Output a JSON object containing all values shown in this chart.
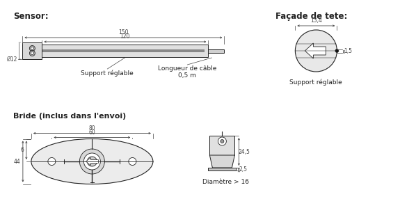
{
  "bg_color": "#ffffff",
  "line_color": "#222222",
  "dim_color": "#444444",
  "title_sensor": "Sensor:",
  "title_facade": "Façade de tete:",
  "title_bride": "Bride (inclus dans l'envoi)",
  "label_support_reg1": "Support réglable",
  "label_support_reg2": "Support réglable",
  "label_longueur": "Longueur de câble\n0,5 m",
  "label_diametre": "Diamètre > 16",
  "dim_150": "150",
  "dim_120": "120",
  "dim_12": "Ø12",
  "dim_13_4": "13,4",
  "dim_1_5": "1,5",
  "dim_80": "80",
  "dim_60": "60",
  "dim_44": "44",
  "dim_6": "6",
  "dim_24_5": "24,5",
  "dim_2_5": "2,5"
}
